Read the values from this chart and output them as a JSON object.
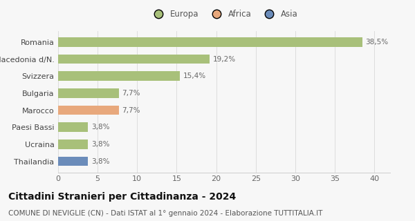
{
  "categories": [
    "Thailandia",
    "Ucraina",
    "Paesi Bassi",
    "Marocco",
    "Bulgaria",
    "Svizzera",
    "Macedonia d/N.",
    "Romania"
  ],
  "values": [
    3.8,
    3.8,
    3.8,
    7.7,
    7.7,
    15.4,
    19.2,
    38.5
  ],
  "labels": [
    "3,8%",
    "3,8%",
    "3,8%",
    "7,7%",
    "7,7%",
    "15,4%",
    "19,2%",
    "38,5%"
  ],
  "colors": [
    "#6b8cba",
    "#a8c07a",
    "#a8c07a",
    "#e8a87c",
    "#a8c07a",
    "#a8c07a",
    "#a8c07a",
    "#a8c07a"
  ],
  "legend_labels": [
    "Europa",
    "Africa",
    "Asia"
  ],
  "legend_colors": [
    "#a8c07a",
    "#e8a87c",
    "#6b8cba"
  ],
  "title": "Cittadini Stranieri per Cittadinanza - 2024",
  "subtitle": "COMUNE DI NEVIGLIE (CN) - Dati ISTAT al 1° gennaio 2024 - Elaborazione TUTTITALIA.IT",
  "xlim": [
    0,
    42
  ],
  "xticks": [
    0,
    5,
    10,
    15,
    20,
    25,
    30,
    35,
    40
  ],
  "background_color": "#f7f7f7",
  "bar_height": 0.55,
  "title_fontsize": 10,
  "subtitle_fontsize": 7.5,
  "label_fontsize": 7.5,
  "tick_fontsize": 8,
  "legend_fontsize": 8.5
}
